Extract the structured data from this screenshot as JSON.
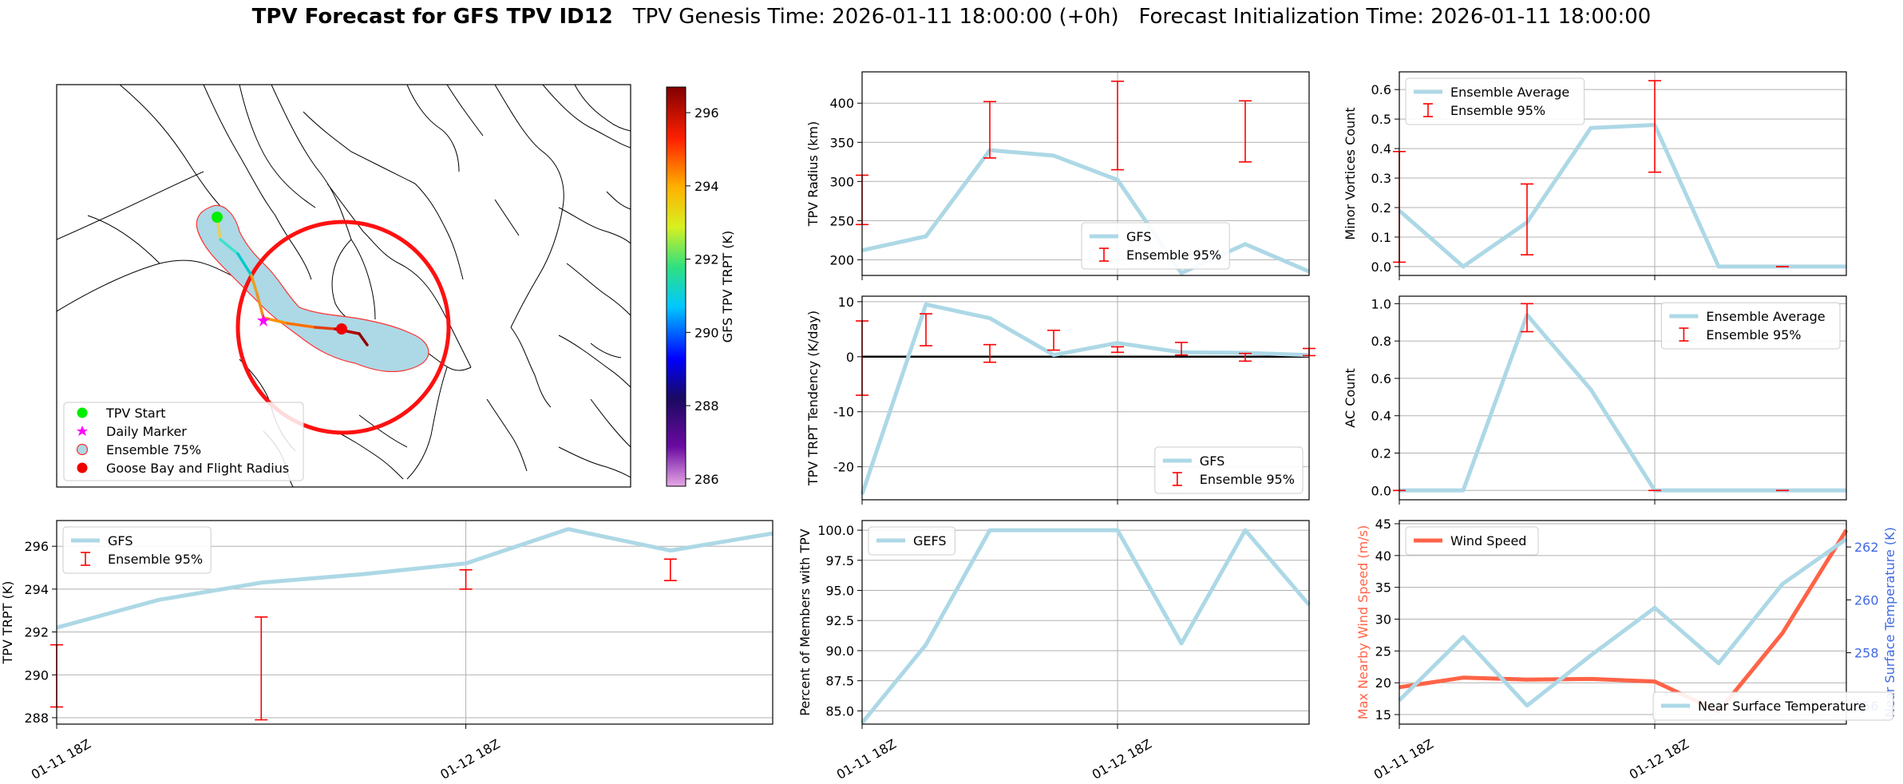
{
  "title": {
    "bold": "TPV Forecast for GFS TPV ID12",
    "genesis": "TPV Genesis Time: 2026-01-11 18:00:00 (+0h)",
    "init": "Forecast Initialization Time: 2026-01-11 18:00:00"
  },
  "colors": {
    "ens_line": "#add8e6",
    "err": "#ff0000",
    "wind": "#ff6347",
    "temp_axis": "#4169e1",
    "grid": "#b0b0b0"
  },
  "time_ticks": [
    "01-11 18Z",
    "01-12 18Z"
  ],
  "map": {
    "colorbar_label": "GFS TPV TRPT (K)",
    "colorbar_ticks": [
      286,
      288,
      290,
      292,
      294,
      296
    ],
    "colorbar_range": [
      285.8,
      296.7
    ],
    "legend": [
      "TPV Start",
      "Daily Marker",
      "Ensemble 75%",
      "Goose Bay and Flight Radius"
    ],
    "legend_icons": [
      "green-circle-icon",
      "magenta-star-icon",
      "blue-circle-outline-icon",
      "red-circle-icon"
    ]
  },
  "chart_data": [
    {
      "id": "radius",
      "type": "line",
      "ylabel": "TPV Radius (km)",
      "ylim": [
        180,
        440
      ],
      "yticks": [
        200,
        250,
        300,
        350,
        400
      ],
      "x": [
        0,
        1,
        2,
        3,
        4,
        5,
        6,
        7
      ],
      "series": [
        {
          "name": "GFS",
          "values": [
            212,
            230,
            340,
            333,
            302,
            183,
            220,
            185
          ]
        }
      ],
      "errorbars": [
        {
          "x": 0,
          "low": 245,
          "high": 308
        },
        {
          "x": 2,
          "low": 330,
          "high": 402
        },
        {
          "x": 4,
          "low": 315,
          "high": 428
        },
        {
          "x": 6,
          "low": 325,
          "high": 403
        }
      ],
      "legend": [
        "GFS",
        "Ensemble 95%"
      ],
      "legend_pos": "lower-center"
    },
    {
      "id": "minor",
      "type": "line",
      "ylabel": "Minor Vortices Count",
      "ylim": [
        -0.03,
        0.66
      ],
      "yticks": [
        0.0,
        0.1,
        0.2,
        0.3,
        0.4,
        0.5,
        0.6
      ],
      "x": [
        0,
        1,
        2,
        3,
        4,
        5,
        6,
        7
      ],
      "series": [
        {
          "name": "Ensemble Average",
          "values": [
            0.19,
            0.0,
            0.15,
            0.47,
            0.48,
            0.0,
            0.0,
            0.0
          ]
        }
      ],
      "errorbars": [
        {
          "x": 0,
          "low": 0.015,
          "high": 0.39
        },
        {
          "x": 2,
          "low": 0.04,
          "high": 0.28
        },
        {
          "x": 4,
          "low": 0.32,
          "high": 0.63
        },
        {
          "x": 6,
          "low": 0.0,
          "high": 0.0
        }
      ],
      "legend": [
        "Ensemble Average",
        "Ensemble 95%"
      ],
      "legend_pos": "upper-left"
    },
    {
      "id": "tendency",
      "type": "line",
      "ylabel": "TPV TRPT Tendency (K/day)",
      "ylim": [
        -26,
        11
      ],
      "yticks": [
        -20,
        -10,
        0,
        10
      ],
      "x": [
        0,
        1,
        2,
        3,
        4,
        5,
        6,
        7
      ],
      "series": [
        {
          "name": "GFS",
          "values": [
            -25,
            9.5,
            7,
            0.3,
            2.5,
            0.8,
            0.7,
            0.3
          ]
        }
      ],
      "errorbars": [
        {
          "x": 0,
          "low": -7,
          "high": 6.5
        },
        {
          "x": 1,
          "low": 2,
          "high": 7.8
        },
        {
          "x": 2,
          "low": -1,
          "high": 2.2
        },
        {
          "x": 3,
          "low": 1.2,
          "high": 4.8
        },
        {
          "x": 4,
          "low": 0.8,
          "high": 1.8
        },
        {
          "x": 5,
          "low": 0.3,
          "high": 2.6
        },
        {
          "x": 6,
          "low": -0.8,
          "high": 0.6
        },
        {
          "x": 7,
          "low": 0.2,
          "high": 1.5
        }
      ],
      "zero_line": true,
      "legend": [
        "GFS",
        "Ensemble 95%"
      ],
      "legend_pos": "lower-right"
    },
    {
      "id": "ac",
      "type": "line",
      "ylabel": "AC Count",
      "ylim": [
        -0.05,
        1.04
      ],
      "yticks": [
        0.0,
        0.2,
        0.4,
        0.6,
        0.8,
        1.0
      ],
      "x": [
        0,
        1,
        2,
        3,
        4,
        5,
        6,
        7
      ],
      "series": [
        {
          "name": "Ensemble Average",
          "values": [
            0.0,
            0.0,
            0.94,
            0.54,
            0.0,
            0.0,
            0.0,
            0.0
          ]
        }
      ],
      "errorbars": [
        {
          "x": 0,
          "low": 0.0,
          "high": 0.0
        },
        {
          "x": 2,
          "low": 0.85,
          "high": 1.0
        },
        {
          "x": 4,
          "low": 0.0,
          "high": 0.0
        },
        {
          "x": 6,
          "low": 0.0,
          "high": 0.0
        }
      ],
      "legend": [
        "Ensemble Average",
        "Ensemble 95%"
      ],
      "legend_pos": "upper-right"
    },
    {
      "id": "trpt",
      "type": "line",
      "ylabel": "TPV TRPT (K)",
      "ylim": [
        287.7,
        297.2
      ],
      "yticks": [
        288,
        290,
        292,
        294,
        296
      ],
      "x": [
        0,
        1,
        2,
        3,
        4,
        5,
        6,
        7
      ],
      "series": [
        {
          "name": "GFS",
          "values": [
            292.2,
            293.5,
            294.3,
            294.7,
            295.2,
            296.8,
            295.8,
            296.6
          ]
        }
      ],
      "errorbars": [
        {
          "x": 0,
          "low": 288.5,
          "high": 291.4
        },
        {
          "x": 2,
          "low": 287.9,
          "high": 292.7
        },
        {
          "x": 4,
          "low": 294.0,
          "high": 294.9
        },
        {
          "x": 6,
          "low": 294.4,
          "high": 295.4
        }
      ],
      "legend": [
        "GFS",
        "Ensemble 95%"
      ],
      "legend_pos": "upper-left"
    },
    {
      "id": "percent",
      "type": "line",
      "ylabel": "Percent of Members with TPV",
      "ylim": [
        83.9,
        100.8
      ],
      "yticks": [
        85.0,
        87.5,
        90.0,
        92.5,
        95.0,
        97.5,
        100.0
      ],
      "x": [
        0,
        1,
        2,
        3,
        4,
        5,
        6,
        7
      ],
      "series": [
        {
          "name": "GEFS",
          "values": [
            84.0,
            90.5,
            100,
            100,
            100,
            90.6,
            100,
            93.8
          ]
        }
      ],
      "legend": [
        "GEFS"
      ],
      "legend_pos": "upper-left"
    },
    {
      "id": "wind_temp",
      "type": "line",
      "ylabel": "Max Nearby Wind Speed (m/s)",
      "ylim": [
        13.5,
        45.5
      ],
      "yticks": [
        15,
        20,
        25,
        30,
        35,
        40,
        45
      ],
      "y2label": "Near Surface Temperature (K)",
      "y2lim": [
        255.3,
        263.0
      ],
      "y2ticks": [
        256,
        258,
        260,
        262
      ],
      "x": [
        0,
        1,
        2,
        3,
        4,
        5,
        6,
        7
      ],
      "series": [
        {
          "name": "Wind Speed",
          "axis": "left",
          "values": [
            19.3,
            20.8,
            20.5,
            20.6,
            20.2,
            15.5,
            27.8,
            44.0
          ]
        },
        {
          "name": "Near Surface Temperature",
          "axis": "right",
          "values": [
            256.2,
            258.6,
            256.0,
            257.9,
            259.7,
            257.6,
            260.6,
            262.3
          ]
        }
      ],
      "legend": [
        "Wind Speed",
        "Near Surface Temperature"
      ]
    }
  ]
}
